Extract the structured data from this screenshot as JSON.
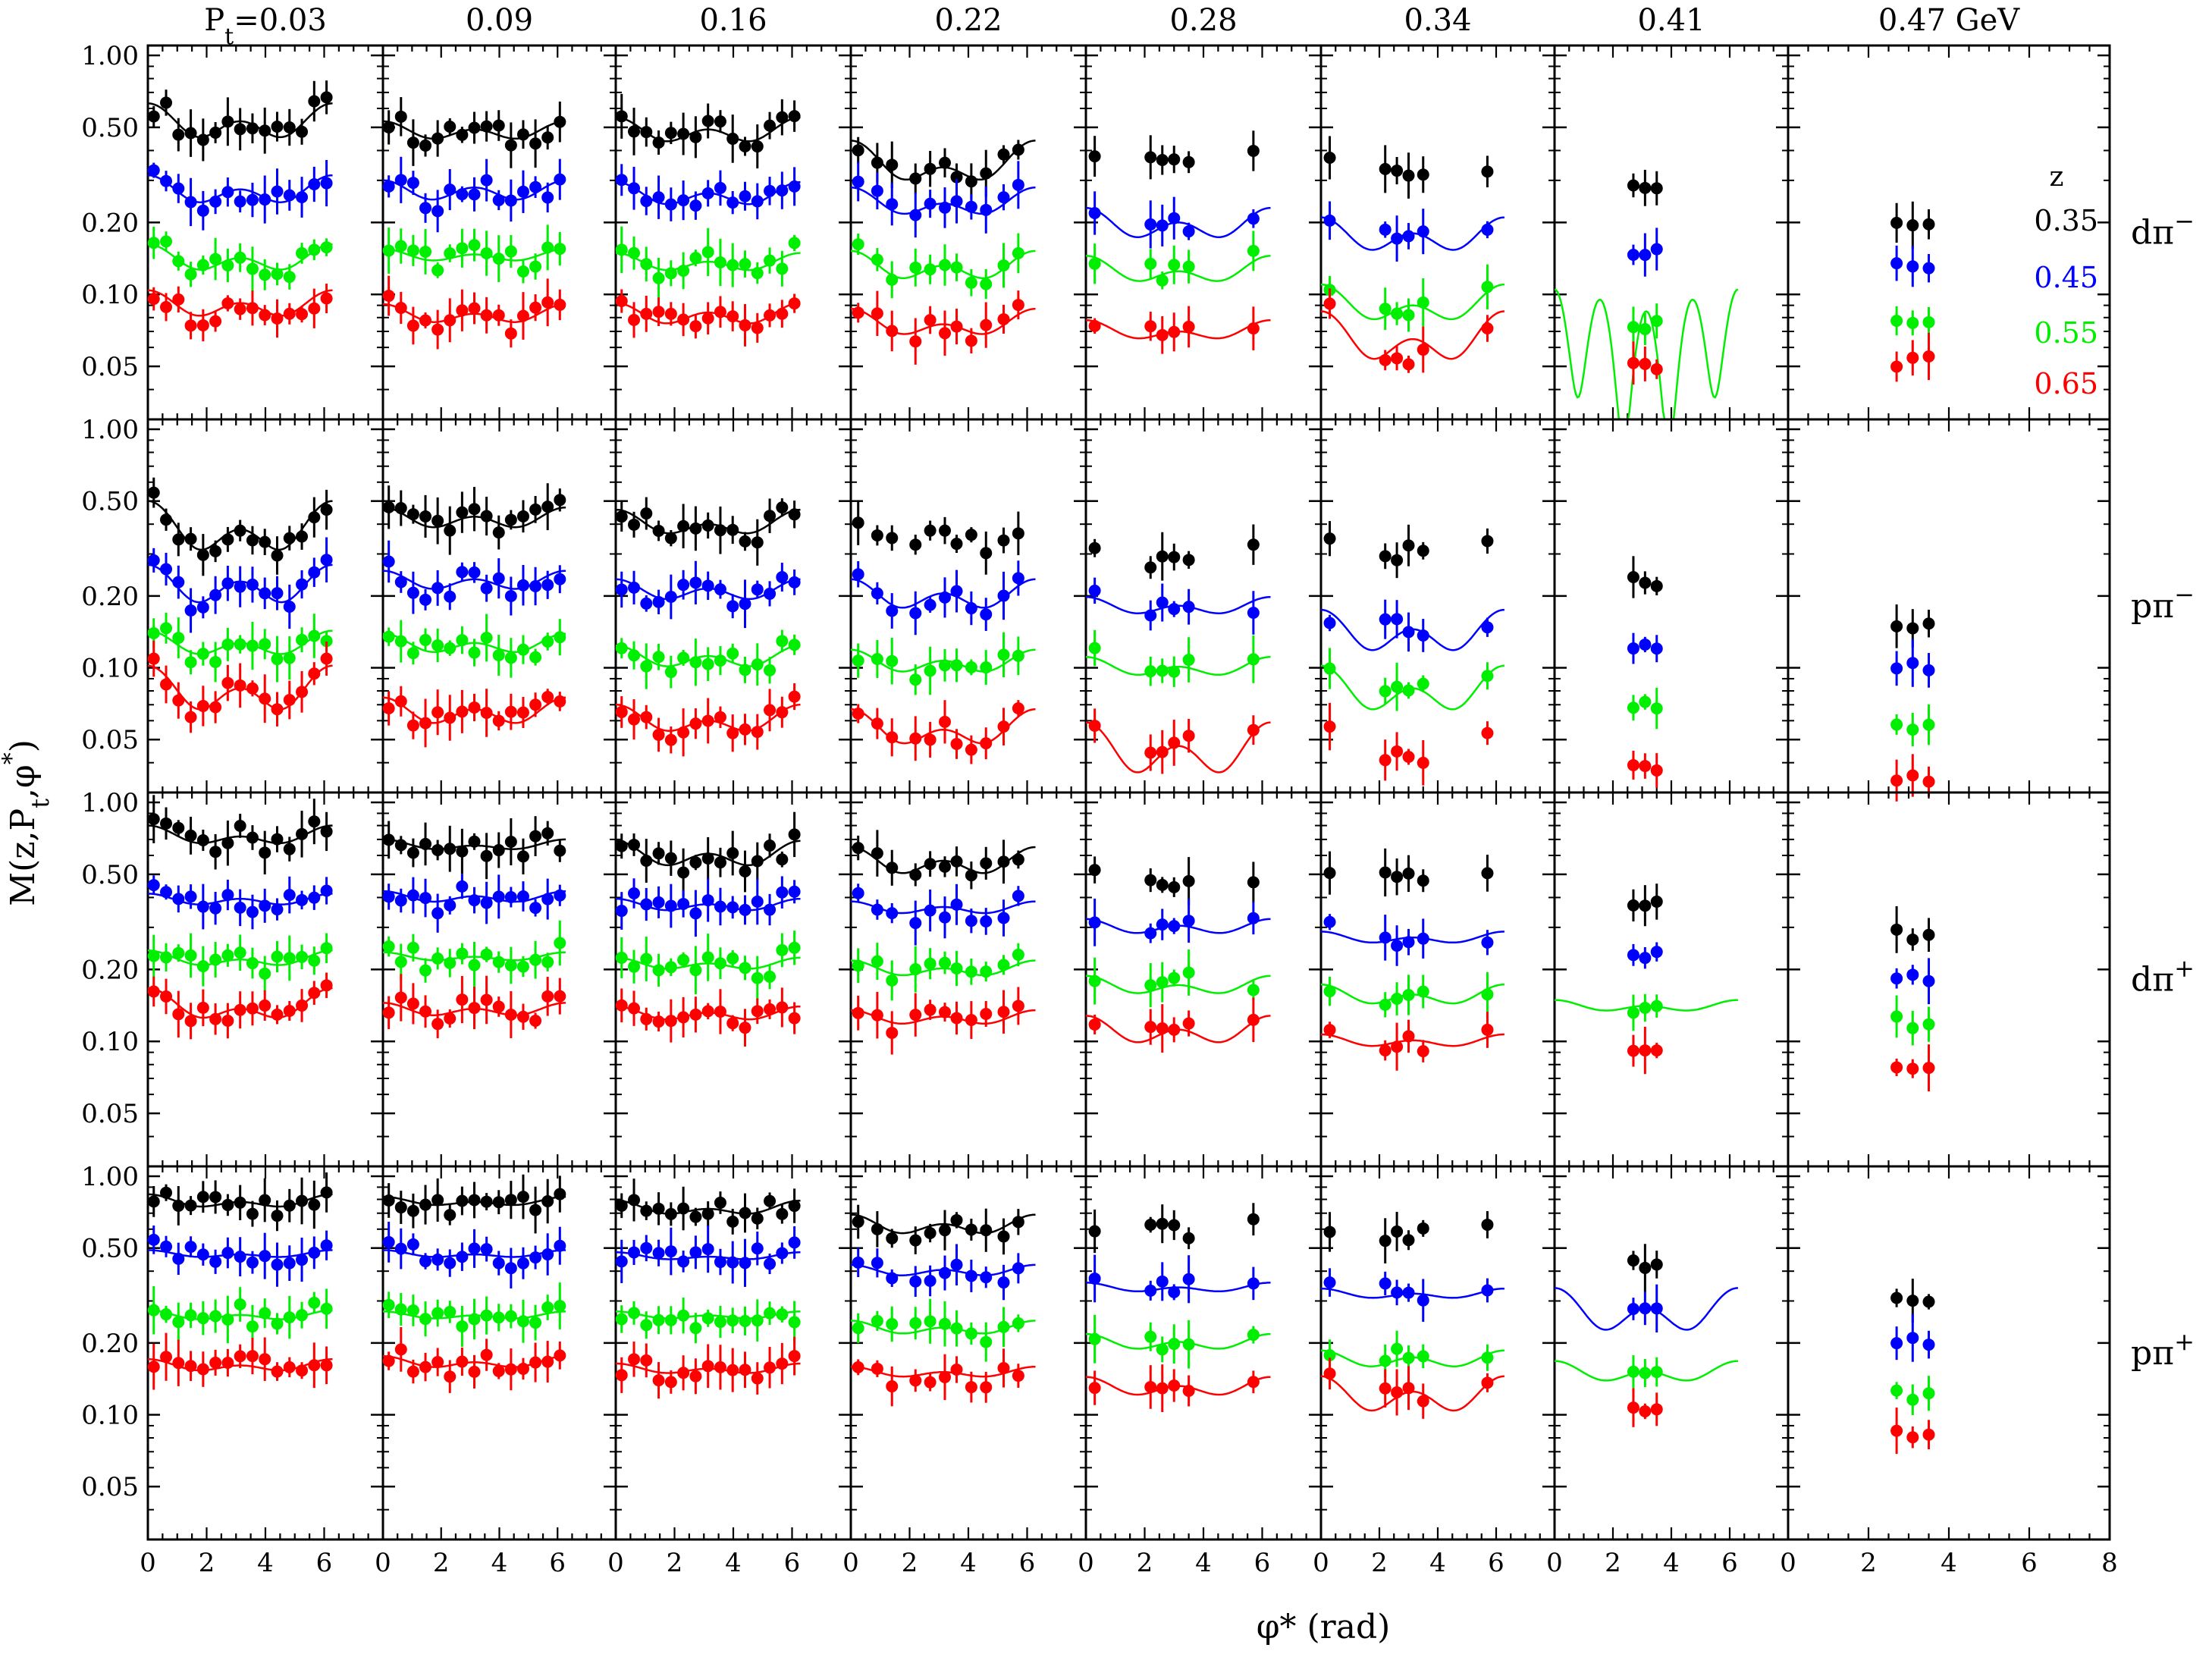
{
  "chart_data": {
    "type": "scatter",
    "layout": "grid of 4 rows x 8 columns; shared log y axis per row, shared linear x axis per column",
    "title": "",
    "xlabel": "φ* (rad)",
    "ylabel": "M(z,Pt,φ*)",
    "ylabel_plain": "M(z,P",
    "ylabel_sub": "t",
    "ylabel_tail": ",φ",
    "ylabel_sup": "*",
    "ylabel_end": ")",
    "xlim": [
      0,
      8
    ],
    "ylim": [
      0.03,
      1.1
    ],
    "yscale": "log",
    "y_ticks": [
      "1.00",
      "0.50",
      "0.20",
      "0.10",
      "0.05"
    ],
    "y_tick_values": [
      1.0,
      0.5,
      0.2,
      0.1,
      0.05
    ],
    "x_ticks_inner": [
      "0",
      "2",
      "4",
      "6"
    ],
    "x_ticks_last": [
      "0",
      "2",
      "4",
      "6",
      "8"
    ],
    "column_labels": [
      {
        "main": "P",
        "sub": "t",
        "tail": "=0.03",
        "pt": 0.03
      },
      {
        "main": "0.09",
        "pt": 0.09
      },
      {
        "main": "0.16",
        "pt": 0.16
      },
      {
        "main": "0.22",
        "pt": 0.22
      },
      {
        "main": "0.28",
        "pt": 0.28
      },
      {
        "main": "0.34",
        "pt": 0.34
      },
      {
        "main": "0.41",
        "pt": 0.41
      },
      {
        "main": "0.47",
        "tail": " GeV",
        "pt": 0.47
      }
    ],
    "row_labels": [
      {
        "main": "dπ",
        "sup": "−"
      },
      {
        "main": "pπ",
        "sup": "−"
      },
      {
        "main": "dπ",
        "sup": "+"
      },
      {
        "main": "pπ",
        "sup": "+"
      }
    ],
    "legend": {
      "title": "z",
      "placement": "top-right panel",
      "entries": [
        {
          "label": "0.35",
          "color": "#000000"
        },
        {
          "label": "0.45",
          "color": "#0000ff"
        },
        {
          "label": "0.55",
          "color": "#00ee00"
        },
        {
          "label": "0.65",
          "color": "#ff0000"
        }
      ]
    },
    "series_names": [
      "0.35",
      "0.45",
      "0.55",
      "0.65"
    ],
    "series_colors": [
      "#000000",
      "#0000ff",
      "#00ee00",
      "#ff0000"
    ],
    "panels": [
      [
        {
          "mode": "full",
          "fit": [
            1,
            1,
            1,
            1
          ],
          "base": [
            0.52,
            0.27,
            0.14,
            0.09
          ],
          "amp": [
            0.06,
            0.025,
            0.012,
            0.008
          ],
          "cos1": [
            0.05,
            0.02,
            0.01,
            0.006
          ]
        },
        {
          "mode": "full",
          "fit": [
            1,
            1,
            1,
            1
          ],
          "base": [
            0.48,
            0.27,
            0.145,
            0.082
          ],
          "amp": [
            0.03,
            0.02,
            0.006,
            0.005
          ],
          "cos1": [
            0.02,
            0.01,
            0.004,
            0.004
          ]
        },
        {
          "mode": "full",
          "fit": [
            1,
            1,
            1,
            1
          ],
          "base": [
            0.48,
            0.26,
            0.135,
            0.082
          ],
          "amp": [
            0.04,
            0.02,
            0.008,
            0.006
          ],
          "cos1": [
            0.03,
            0.015,
            0.006,
            0.004
          ]
        },
        {
          "mode": "gap",
          "fit": [
            1,
            1,
            1,
            1
          ],
          "base": [
            0.35,
            0.24,
            0.13,
            0.075
          ],
          "amp": [
            0.04,
            0.02,
            0.012,
            0.006
          ],
          "cos1": [
            0.05,
            0.02,
            0.01,
            0.006
          ]
        },
        {
          "mode": "center",
          "fit": [
            0,
            1,
            1,
            1
          ],
          "base": [
            0.35,
            0.195,
            0.125,
            0.07
          ],
          "amp": [
            0.04,
            0.02,
            0.01,
            0.004
          ],
          "cos1": [
            0.03,
            0.015,
            0.01,
            0.004
          ],
          "center": [
            0.36,
            0.2,
            0.125,
            0.068
          ]
        },
        {
          "mode": "center",
          "fit": [
            0,
            1,
            1,
            1
          ],
          "base": [
            0.32,
            0.175,
            0.09,
            0.065
          ],
          "amp": [
            0.03,
            0.02,
            0.01,
            0.01
          ],
          "cos1": [
            0.02,
            0.015,
            0.01,
            0.01
          ],
          "center": [
            0.33,
            0.175,
            0.09,
            0.055
          ]
        },
        {
          "mode": "cluster",
          "fit": [
            0,
            0,
            1,
            0
          ],
          "base": [
            0.28,
            0.15,
            0.06,
            0.05
          ],
          "amp": [
            0,
            0,
            0.03,
            0
          ],
          "cos1": [
            0,
            0,
            0.02,
            0
          ],
          "center": [
            0.28,
            0.155,
            0.075,
            0.05
          ],
          "deep": true
        },
        {
          "mode": "legend",
          "fit": [
            0,
            0,
            0,
            0
          ],
          "base": [
            0.19,
            0.13,
            0.075,
            0.052
          ],
          "amp": [
            0,
            0,
            0,
            0
          ],
          "cos1": [
            0,
            0,
            0,
            0
          ],
          "center": [
            0.19,
            0.13,
            0.075,
            0.052
          ]
        }
      ],
      [
        {
          "mode": "full",
          "fit": [
            1,
            1,
            1,
            1
          ],
          "base": [
            0.38,
            0.22,
            0.125,
            0.08
          ],
          "amp": [
            0.06,
            0.03,
            0.01,
            0.012
          ],
          "cos1": [
            0.06,
            0.02,
            0.008,
            0.01
          ]
        },
        {
          "mode": "full",
          "fit": [
            1,
            1,
            1,
            1
          ],
          "base": [
            0.42,
            0.23,
            0.125,
            0.065
          ],
          "amp": [
            0.03,
            0.015,
            0.008,
            0.006
          ],
          "cos1": [
            0.02,
            0.01,
            0.006,
            0.004
          ]
        },
        {
          "mode": "full",
          "fit": [
            1,
            1,
            1,
            1
          ],
          "base": [
            0.4,
            0.21,
            0.11,
            0.06
          ],
          "amp": [
            0.03,
            0.015,
            0.008,
            0.005
          ],
          "cos1": [
            0.03,
            0.01,
            0.006,
            0.005
          ]
        },
        {
          "mode": "gap",
          "fit": [
            0,
            1,
            1,
            1
          ],
          "base": [
            0.36,
            0.2,
            0.105,
            0.055
          ],
          "amp": [
            0.03,
            0.02,
            0.008,
            0.006
          ],
          "cos1": [
            0.03,
            0.015,
            0.006,
            0.006
          ],
          "center": [
            0.37,
            0.2,
            0.105,
            0.055
          ]
        },
        {
          "mode": "center",
          "fit": [
            0,
            1,
            1,
            1
          ],
          "base": [
            0.28,
            0.18,
            0.1,
            0.045
          ],
          "amp": [
            0.03,
            0.01,
            0.006,
            0.008
          ],
          "cos1": [
            0.02,
            0.008,
            0.005,
            0.006
          ],
          "center": [
            0.28,
            0.18,
            0.1,
            0.048
          ]
        },
        {
          "mode": "center",
          "fit": [
            0,
            1,
            1,
            0
          ],
          "base": [
            0.3,
            0.14,
            0.08,
            0.045
          ],
          "amp": [
            0.04,
            0.02,
            0.012,
            0.006
          ],
          "cos1": [
            0.02,
            0.015,
            0.01,
            0.004
          ],
          "center": [
            0.3,
            0.15,
            0.085,
            0.043
          ]
        },
        {
          "mode": "cluster",
          "fit": [
            0,
            0,
            0,
            0
          ],
          "base": [
            0.23,
            0.125,
            0.07,
            0.038
          ],
          "amp": [
            0,
            0,
            0,
            0
          ],
          "cos1": [
            0,
            0,
            0,
            0
          ],
          "center": [
            0.23,
            0.125,
            0.07,
            0.038
          ]
        },
        {
          "mode": "cluster",
          "fit": [
            0,
            0,
            0,
            0
          ],
          "base": [
            0.145,
            0.1,
            0.055,
            0.035
          ],
          "amp": [
            0,
            0,
            0,
            0
          ],
          "cos1": [
            0,
            0,
            0,
            0
          ],
          "center": [
            0.145,
            0.1,
            0.055,
            0.035
          ]
        }
      ],
      [
        {
          "mode": "full",
          "fit": [
            1,
            1,
            1,
            1
          ],
          "base": [
            0.72,
            0.39,
            0.22,
            0.14
          ],
          "amp": [
            0.04,
            0.015,
            0.01,
            0.012
          ],
          "cos1": [
            0.04,
            0.01,
            0.01,
            0.015
          ]
        },
        {
          "mode": "full",
          "fit": [
            1,
            1,
            1,
            1
          ],
          "base": [
            0.66,
            0.4,
            0.225,
            0.135
          ],
          "amp": [
            0.02,
            0.015,
            0.006,
            0.006
          ],
          "cos1": [
            0.02,
            0.01,
            0.005,
            0.004
          ]
        },
        {
          "mode": "full",
          "fit": [
            1,
            1,
            1,
            1
          ],
          "base": [
            0.6,
            0.37,
            0.21,
            0.13
          ],
          "amp": [
            0.05,
            0.015,
            0.008,
            0.006
          ],
          "cos1": [
            0.04,
            0.01,
            0.006,
            0.004
          ]
        },
        {
          "mode": "gap",
          "fit": [
            1,
            1,
            1,
            1
          ],
          "base": [
            0.56,
            0.36,
            0.2,
            0.125
          ],
          "amp": [
            0.05,
            0.015,
            0.01,
            0.006
          ],
          "cos1": [
            0.04,
            0.01,
            0.008,
            0.004
          ]
        },
        {
          "mode": "center",
          "fit": [
            0,
            1,
            1,
            1
          ],
          "base": [
            0.48,
            0.3,
            0.17,
            0.11
          ],
          "amp": [
            0.03,
            0.015,
            0.01,
            0.01
          ],
          "cos1": [
            0.02,
            0.01,
            0.008,
            0.008
          ],
          "center": [
            0.48,
            0.3,
            0.18,
            0.115
          ]
        },
        {
          "mode": "center",
          "fit": [
            0,
            1,
            1,
            1
          ],
          "base": [
            0.47,
            0.27,
            0.155,
            0.1
          ],
          "amp": [
            0.03,
            0.01,
            0.01,
            0.004
          ],
          "cos1": [
            0.02,
            0.008,
            0.008,
            0.003
          ],
          "center": [
            0.47,
            0.27,
            0.155,
            0.1
          ]
        },
        {
          "mode": "cluster",
          "fit": [
            0,
            0,
            1,
            0
          ],
          "base": [
            0.37,
            0.23,
            0.14,
            0.09
          ],
          "amp": [
            0,
            0,
            0.005,
            0
          ],
          "cos1": [
            0,
            0,
            0.004,
            0
          ],
          "center": [
            0.37,
            0.23,
            0.14,
            0.09
          ],
          "wide": true
        },
        {
          "mode": "cluster",
          "fit": [
            0,
            0,
            0,
            0
          ],
          "base": [
            0.28,
            0.19,
            0.12,
            0.075
          ],
          "amp": [
            0,
            0,
            0,
            0
          ],
          "cos1": [
            0,
            0,
            0,
            0
          ],
          "center": [
            0.28,
            0.19,
            0.12,
            0.075
          ]
        }
      ],
      [
        {
          "mode": "full",
          "fit": [
            1,
            1,
            1,
            1
          ],
          "base": [
            0.78,
            0.47,
            0.26,
            0.16
          ],
          "amp": [
            0.03,
            0.01,
            0.008,
            0.006
          ],
          "cos1": [
            0.03,
            0.01,
            0.006,
            0.005
          ]
        },
        {
          "mode": "full",
          "fit": [
            1,
            1,
            1,
            1
          ],
          "base": [
            0.78,
            0.47,
            0.26,
            0.165
          ],
          "amp": [
            0.02,
            0.01,
            0.006,
            0.006
          ],
          "cos1": [
            0.02,
            0.01,
            0.005,
            0.005
          ]
        },
        {
          "mode": "full",
          "fit": [
            1,
            1,
            1,
            1
          ],
          "base": [
            0.73,
            0.46,
            0.26,
            0.155
          ],
          "amp": [
            0.03,
            0.01,
            0.006,
            0.005
          ],
          "cos1": [
            0.03,
            0.01,
            0.005,
            0.004
          ]
        },
        {
          "mode": "gap",
          "fit": [
            1,
            1,
            1,
            1
          ],
          "base": [
            0.62,
            0.4,
            0.23,
            0.15
          ],
          "amp": [
            0.04,
            0.015,
            0.01,
            0.005
          ],
          "cos1": [
            0.03,
            0.01,
            0.008,
            0.004
          ]
        },
        {
          "mode": "center",
          "fit": [
            0,
            1,
            1,
            1
          ],
          "base": [
            0.6,
            0.34,
            0.2,
            0.13
          ],
          "amp": [
            0.03,
            0.01,
            0.01,
            0.008
          ],
          "cos1": [
            0.02,
            0.008,
            0.008,
            0.006
          ],
          "center": [
            0.6,
            0.35,
            0.2,
            0.135
          ]
        },
        {
          "mode": "center",
          "fit": [
            0,
            1,
            1,
            1
          ],
          "base": [
            0.58,
            0.32,
            0.17,
            0.12
          ],
          "amp": [
            0.03,
            0.01,
            0.01,
            0.015
          ],
          "cos1": [
            0.02,
            0.008,
            0.006,
            0.01
          ],
          "center": [
            0.58,
            0.33,
            0.18,
            0.12
          ]
        },
        {
          "mode": "cluster",
          "fit": [
            0,
            1,
            1,
            0
          ],
          "base": [
            0.43,
            0.27,
            0.15,
            0.1
          ],
          "amp": [
            0,
            0.04,
            0.01,
            0
          ],
          "cos1": [
            0,
            0.03,
            0.008,
            0
          ],
          "center": [
            0.43,
            0.27,
            0.155,
            0.105
          ],
          "wide": true
        },
        {
          "mode": "cluster",
          "fit": [
            0,
            0,
            0,
            0
          ],
          "base": [
            0.3,
            0.2,
            0.12,
            0.085
          ],
          "amp": [
            0,
            0,
            0,
            0
          ],
          "cos1": [
            0,
            0,
            0,
            0
          ],
          "center": [
            0.3,
            0.2,
            0.12,
            0.085
          ]
        }
      ]
    ]
  }
}
